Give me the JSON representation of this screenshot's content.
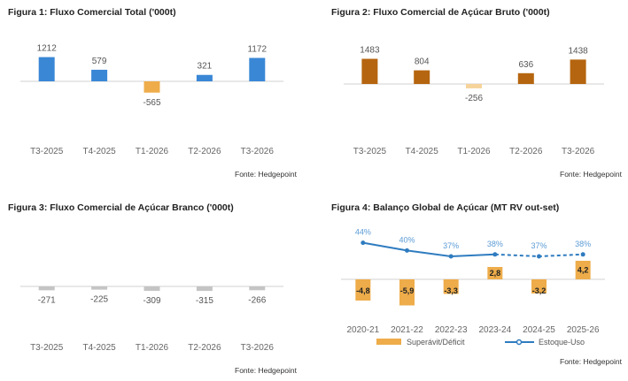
{
  "chart_data": [
    {
      "type": "bar",
      "title": "Figura 1: Fluxo Comercial Total ('000t)",
      "categories": [
        "T3-2025",
        "T4-2025",
        "T1-2026",
        "T2-2026",
        "T3-2026"
      ],
      "values": [
        1212,
        579,
        -565,
        321,
        1172
      ],
      "value_labels": [
        "1212",
        "579",
        "-565",
        "321",
        "1172"
      ],
      "ylim": [
        -1500,
        1700
      ],
      "source": "Fonte: Hedgepoint",
      "colors": {
        "positive": "#3a87d6",
        "negative": "#eeac4a"
      }
    },
    {
      "type": "bar",
      "title": "Figura 2: Fluxo Comercial de Açúcar Bruto ('000t)",
      "categories": [
        "T3-2025",
        "T4-2025",
        "T1-2026",
        "T2-2026",
        "T3-2026"
      ],
      "values": [
        1483,
        804,
        -256,
        636,
        1438
      ],
      "value_labels": [
        "1483",
        "804",
        "-256",
        "636",
        "1438"
      ],
      "ylim": [
        -1700,
        2000
      ],
      "source": "Fonte: Hedgepoint",
      "colors": {
        "positive": "#b5650f",
        "negative": "#f6d39a"
      }
    },
    {
      "type": "bar",
      "title": "Figura 3: Fluxo Comercial de Açúcar Branco ('000t)",
      "categories": [
        "T3-2025",
        "T4-2025",
        "T1-2026",
        "T2-2026",
        "T3-2026"
      ],
      "values": [
        -271,
        -225,
        -309,
        -315,
        -266
      ],
      "value_labels": [
        "-271",
        "-225",
        "-309",
        "-315",
        "-266"
      ],
      "ylim": [
        -1500,
        1500
      ],
      "source": "Fonte: Hedgepoint",
      "colors": {
        "positive": "#c4c4c4",
        "negative": "#c4c4c4"
      }
    },
    {
      "type": "bar+line",
      "title": "Figura 4: Balanço Global de Açúcar (MT RV out-set)",
      "categories": [
        "2020-21",
        "2021-22",
        "2022-23",
        "2023-24",
        "2024-25",
        "2025-26"
      ],
      "series": [
        {
          "name": "Superávit/Déficit",
          "type": "bar",
          "values": [
            -4.8,
            -5.9,
            -3.3,
            2.8,
            -3.2,
            4.2
          ],
          "value_labels": [
            "-4,8",
            "-5,9",
            "-3,3",
            "2,8",
            "-3,2",
            "4,2"
          ],
          "color": "#eeac4a"
        },
        {
          "name": "Estoque-Uso",
          "type": "line",
          "values": [
            44,
            40,
            37,
            38,
            37,
            38
          ],
          "value_labels": [
            "44%",
            "40%",
            "37%",
            "38%",
            "37%",
            "38%"
          ],
          "color": "#2f7cc0",
          "dashed_from_index": 3
        }
      ],
      "bar_ylim": [
        -6.5,
        6.5
      ],
      "line_ylim": [
        25,
        50
      ],
      "legend": [
        "Superávit/Déficit",
        "Estoque-Uso"
      ],
      "legend_position": "bottom",
      "source": "Fonte: Hedgepoint"
    }
  ]
}
